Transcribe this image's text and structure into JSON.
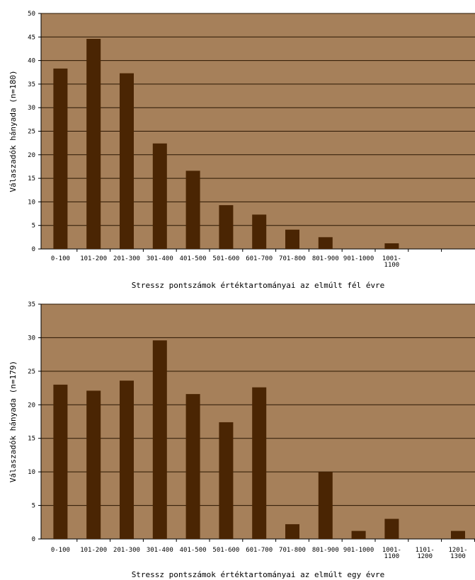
{
  "chart_data": [
    {
      "type": "bar",
      "xlabel": "Stressz pontszámok értéktartományai az elmúlt fél évre",
      "ylabel": "Válaszadók hányada (n=180)",
      "ylim": [
        0,
        50
      ],
      "yticks": [
        0,
        5,
        10,
        15,
        20,
        25,
        30,
        35,
        40,
        45,
        50
      ],
      "ytick_labels": [
        "0",
        "5",
        "10",
        "15",
        "20",
        "25",
        "30",
        "35",
        "40",
        "45",
        "50"
      ],
      "categories": [
        "0-100",
        "101-200",
        "201-300",
        "301-400",
        "401-500",
        "501-600",
        "601-700",
        "701-800",
        "801-900",
        "901-1000",
        "1001-1100",
        ""
      ],
      "category_lines": [
        [
          "0-100"
        ],
        [
          "101-200"
        ],
        [
          "201-300"
        ],
        [
          "301-400"
        ],
        [
          "401-500"
        ],
        [
          "501-600"
        ],
        [
          "601-700"
        ],
        [
          "701-800"
        ],
        [
          "801-900"
        ],
        [
          "901-1000"
        ],
        [
          "1001-",
          "1100"
        ],
        [
          ""
        ]
      ],
      "values": [
        38.3,
        44.6,
        37.3,
        22.4,
        16.6,
        9.3,
        7.3,
        4.1,
        2.5,
        0,
        1.2,
        0
      ],
      "grid": true,
      "colors": {
        "plot_bg": "#a6805a",
        "bar": "#4a2503",
        "grid": "#2a1602"
      }
    },
    {
      "type": "bar",
      "xlabel": "Stressz pontszámok értéktartományai az elmúlt egy évre",
      "ylabel": "Válaszadók hányada (n=179)",
      "ylim": [
        0,
        35
      ],
      "yticks": [
        0,
        5,
        10,
        15,
        20,
        25,
        30,
        35
      ],
      "ytick_labels": [
        "0",
        "5",
        "10",
        "15",
        "20",
        "25",
        "30",
        "35"
      ],
      "categories": [
        "0-100",
        "101-200",
        "201-300",
        "301-400",
        "401-500",
        "501-600",
        "601-700",
        "701-800",
        "801-900",
        "901-1000",
        "1001-1100",
        "1101-1200",
        "1201-1300"
      ],
      "category_lines": [
        [
          "0-100"
        ],
        [
          "101-200"
        ],
        [
          "201-300"
        ],
        [
          "301-400"
        ],
        [
          "401-500"
        ],
        [
          "501-600"
        ],
        [
          "601-700"
        ],
        [
          "701-800"
        ],
        [
          "801-900"
        ],
        [
          "901-1000"
        ],
        [
          "1001-",
          "1100"
        ],
        [
          "1101-",
          "1200"
        ],
        [
          "1201-",
          "1300"
        ]
      ],
      "values": [
        23.0,
        22.1,
        23.6,
        29.6,
        21.6,
        17.4,
        22.6,
        2.2,
        10.0,
        1.2,
        3.0,
        0,
        1.2
      ],
      "grid": true,
      "colors": {
        "plot_bg": "#a6805a",
        "bar": "#4a2503",
        "grid": "#2a1602"
      }
    }
  ]
}
